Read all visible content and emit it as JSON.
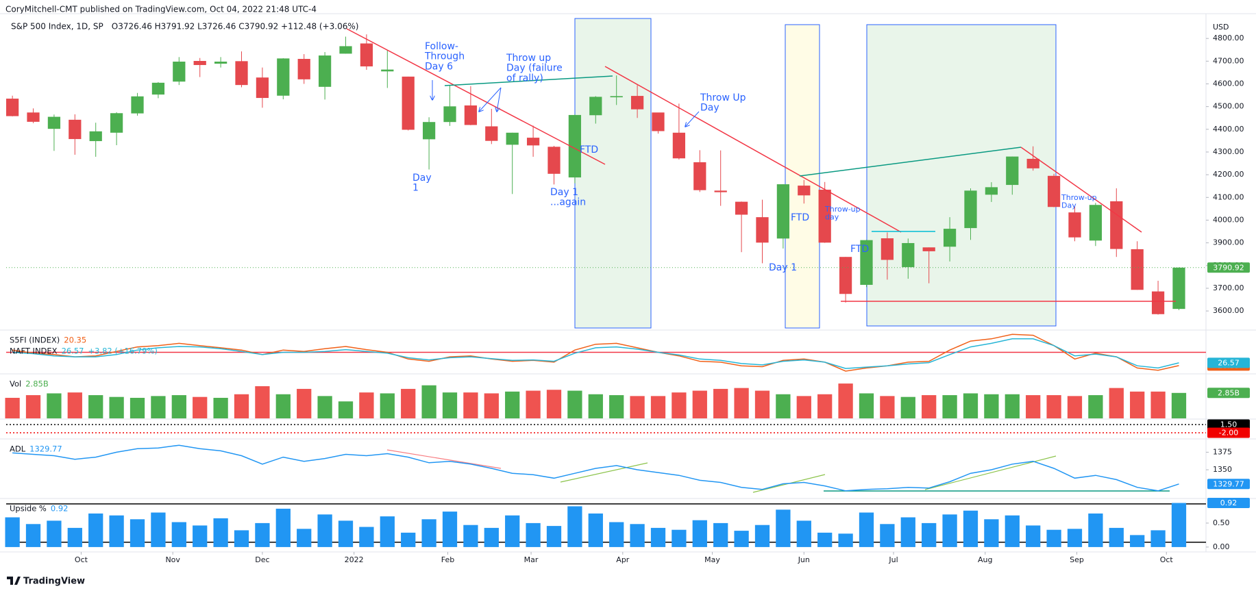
{
  "header": {
    "publisher": "CoryMitchell-CMT published on TradingView.com, Oct 04, 2022 21:48 UTC-4",
    "symbol": "S&P 500 Index, 1D, SP",
    "ohlc": "O3726.46  H3791.92  L3726.46  C3790.92  +112.48 (+3.06%)"
  },
  "footer": {
    "logo": "TradingView"
  },
  "chart_data": [
    {
      "type": "candlestick",
      "unit": "USD",
      "colors": {
        "up": "#4caf50",
        "down": "#e5484d"
      },
      "open": [
        4535,
        4474,
        4402,
        4442,
        4348,
        4385,
        4470,
        4553,
        4610,
        4701,
        4689,
        4700,
        4628,
        4548,
        4710,
        4587,
        4733,
        4778,
        4655,
        4632,
        4356,
        4432,
        4505,
        4413,
        4332,
        4363,
        4323,
        4188,
        4462,
        4541,
        4547,
        4474,
        4385,
        4255,
        4130,
        4081,
        4013,
        3919,
        4152,
        4134,
        3838,
        3715,
        3920,
        3793,
        3880,
        3883,
        3965,
        4112,
        4155,
        4270,
        4195,
        4034,
        3910,
        4083,
        3872,
        3686,
        3609
      ],
      "high": [
        4548,
        4492,
        4465,
        4466,
        4429,
        4475,
        4560,
        4608,
        4718,
        4714,
        4718,
        4743,
        4672,
        4713,
        4731,
        4740,
        4808,
        4818,
        4748,
        4632,
        4453,
        4595,
        4590,
        4490,
        4385,
        4416,
        4327,
        4465,
        4546,
        4637,
        4594,
        4471,
        4513,
        4308,
        4307,
        4082,
        4090,
        4158,
        4177,
        4168,
        3838,
        3913,
        3946,
        3919,
        3880,
        4013,
        4140,
        4167,
        4280,
        4325,
        4204,
        4062,
        4076,
        4140,
        3907,
        3733,
        3792
      ],
      "low": [
        4457,
        4427,
        4305,
        4288,
        4279,
        4330,
        4460,
        4537,
        4595,
        4630,
        4672,
        4585,
        4495,
        4532,
        4600,
        4531,
        4733,
        4662,
        4582,
        4395,
        4223,
        4415,
        4418,
        4335,
        4115,
        4279,
        4157,
        4162,
        4425,
        4507,
        4450,
        4381,
        4267,
        4124,
        4063,
        3859,
        3810,
        3875,
        4073,
        3900,
        3637,
        3705,
        3738,
        3742,
        3722,
        3818,
        3913,
        4080,
        4112,
        4218,
        4057,
        3907,
        3886,
        3838,
        3693,
        3584,
        3604
      ],
      "close": [
        4458,
        4433,
        4455,
        4357,
        4391,
        4471,
        4545,
        4605,
        4698,
        4683,
        4698,
        4595,
        4538,
        4712,
        4620,
        4725,
        4766,
        4677,
        4663,
        4398,
        4432,
        4501,
        4419,
        4349,
        4385,
        4329,
        4204,
        4463,
        4543,
        4546,
        4488,
        4392,
        4272,
        4132,
        4123,
        4024,
        3901,
        4158,
        4109,
        3901,
        3675,
        3912,
        3825,
        3899,
        3863,
        3962,
        4130,
        4145,
        4280,
        4228,
        4058,
        3924,
        4067,
        3873,
        3693,
        3586,
        3790.92
      ],
      "xlim": [
        -0.3,
        57.3
      ],
      "xticks": [
        {
          "value": 3.3,
          "label": "Oct"
        },
        {
          "value": 7.7,
          "label": "Nov"
        },
        {
          "value": 12.0,
          "label": "Dec"
        },
        {
          "value": 16.4,
          "label": "2022"
        },
        {
          "value": 20.9,
          "label": "Feb"
        },
        {
          "value": 24.9,
          "label": "Mar"
        },
        {
          "value": 29.3,
          "label": "Apr"
        },
        {
          "value": 33.6,
          "label": "May"
        },
        {
          "value": 38.0,
          "label": "Jun"
        },
        {
          "value": 42.3,
          "label": "Jul"
        },
        {
          "value": 46.7,
          "label": "Aug"
        },
        {
          "value": 51.1,
          "label": "Sep"
        },
        {
          "value": 55.4,
          "label": "Oct"
        }
      ],
      "ylim": [
        3525,
        4900
      ],
      "yticks": [
        {
          "value": 3600,
          "label": "3600.00"
        },
        {
          "value": 3700,
          "label": "3700.00"
        },
        {
          "value": 3800,
          "label": "3800.00"
        },
        {
          "value": 3900,
          "label": "3900.00"
        },
        {
          "value": 4000,
          "label": "4000.00"
        },
        {
          "value": 4100,
          "label": "4100.00"
        },
        {
          "value": 4200,
          "label": "4200.00"
        },
        {
          "value": 4300,
          "label": "4300.00"
        },
        {
          "value": 4400,
          "label": "4400.00"
        },
        {
          "value": 4500,
          "label": "4500.00"
        },
        {
          "value": 4600,
          "label": "4600.00"
        },
        {
          "value": 4700,
          "label": "4700.00"
        },
        {
          "value": 4800,
          "label": "4800.00"
        }
      ],
      "grid": false,
      "annotations": [
        {
          "lines": [
            "Follow-",
            "Through",
            "Day 6"
          ]
        },
        {
          "lines": [
            "Throw up",
            "Day (failure",
            "of rally)"
          ]
        },
        {
          "lines": [
            "Throw Up",
            "Day"
          ]
        },
        {
          "lines": [
            "FTD"
          ]
        },
        {
          "lines": [
            "Day",
            "1"
          ]
        },
        {
          "lines": [
            "Day 1",
            "...again"
          ]
        },
        {
          "lines": [
            "FTD"
          ]
        },
        {
          "lines": [
            "Throw-up",
            "day"
          ]
        },
        {
          "lines": [
            "Day 1"
          ]
        },
        {
          "lines": [
            "FTD"
          ]
        },
        {
          "lines": [
            "Throw-up",
            "Day"
          ]
        }
      ]
    },
    {
      "type": "line",
      "ylim": [
        5,
        95
      ],
      "level": 50,
      "level_color": "#f23645",
      "series": [
        {
          "name": "S5FI (INDEX)",
          "color": "#f06018",
          "values": [
            55,
            48,
            45,
            40,
            42,
            52,
            62,
            65,
            70,
            65,
            60,
            55,
            45,
            55,
            52,
            58,
            63,
            56,
            50,
            35,
            30,
            40,
            42,
            35,
            30,
            32,
            28,
            55,
            68,
            70,
            60,
            50,
            42,
            30,
            28,
            20,
            18,
            32,
            35,
            28,
            8,
            15,
            20,
            28,
            30,
            55,
            75,
            80,
            90,
            88,
            65,
            35,
            48,
            40,
            15,
            10,
            20.35
          ]
        },
        {
          "name": "NAFT INDEX",
          "change": "+3.82 (+16.79%)",
          "color": "#26b5d6",
          "values": [
            50,
            47,
            42,
            40,
            40,
            45,
            55,
            60,
            63,
            62,
            58,
            52,
            45,
            50,
            50,
            52,
            56,
            52,
            48,
            38,
            33,
            38,
            40,
            36,
            32,
            33,
            30,
            48,
            60,
            62,
            57,
            50,
            44,
            35,
            32,
            25,
            22,
            30,
            33,
            28,
            14,
            17,
            20,
            24,
            27,
            45,
            62,
            70,
            80,
            80,
            65,
            42,
            46,
            40,
            20,
            15,
            26.57
          ]
        }
      ]
    },
    {
      "type": "bar",
      "title": "Vol",
      "color_by": "candles",
      "colors": {
        "up": "#4caf50",
        "down": "#ef5350"
      },
      "ylim": [
        0,
        4.75
      ],
      "last_value_label": "2.85B",
      "values": [
        2.3,
        2.6,
        2.8,
        2.9,
        2.6,
        2.4,
        2.3,
        2.5,
        2.6,
        2.4,
        2.3,
        2.7,
        3.6,
        2.7,
        3.3,
        2.5,
        1.9,
        2.9,
        2.8,
        3.3,
        3.7,
        2.9,
        2.9,
        2.8,
        3.0,
        3.1,
        3.2,
        3.1,
        2.7,
        2.6,
        2.5,
        2.5,
        2.9,
        3.1,
        3.3,
        3.4,
        3.1,
        2.7,
        2.5,
        2.7,
        3.9,
        2.8,
        2.5,
        2.4,
        2.6,
        2.6,
        2.8,
        2.7,
        2.7,
        2.6,
        2.6,
        2.5,
        2.6,
        3.4,
        3.0,
        3.0,
        2.85
      ]
    },
    {
      "type": "levels",
      "ylim": [
        -4.3,
        3.8
      ],
      "levels": [
        {
          "value": 1.5,
          "label": "1.50",
          "color": "#000000"
        },
        {
          "value": -2,
          "label": "-2.00",
          "color": "#f00000"
        }
      ]
    },
    {
      "type": "line",
      "ylim": [
        1312,
        1391
      ],
      "yticks": [
        1375,
        1350
      ],
      "series": [
        {
          "name": "ADL",
          "color": "#2196f3",
          "values": [
            1374,
            1372,
            1370,
            1365,
            1368,
            1375,
            1380,
            1381,
            1385,
            1380,
            1377,
            1370,
            1358,
            1368,
            1362,
            1366,
            1372,
            1370,
            1373,
            1368,
            1360,
            1362,
            1358,
            1352,
            1345,
            1343,
            1338,
            1345,
            1352,
            1356,
            1350,
            1346,
            1342,
            1335,
            1332,
            1325,
            1322,
            1330,
            1332,
            1327,
            1320,
            1322,
            1323,
            1325,
            1324,
            1333,
            1345,
            1350,
            1358,
            1362,
            1352,
            1338,
            1342,
            1336,
            1325,
            1320,
            1329.77
          ]
        }
      ]
    },
    {
      "type": "bar",
      "title": "Upside %",
      "color": "#2196f3",
      "ylim": [
        -0.03,
        0.97
      ],
      "yticks": [
        {
          "value": 0.5,
          "label": "0.50"
        },
        {
          "value": 0,
          "label": "0.00"
        }
      ],
      "levels": [
        0.9,
        0.1
      ],
      "values": [
        0.62,
        0.48,
        0.55,
        0.4,
        0.7,
        0.66,
        0.58,
        0.72,
        0.52,
        0.45,
        0.6,
        0.35,
        0.5,
        0.8,
        0.38,
        0.68,
        0.55,
        0.42,
        0.64,
        0.3,
        0.58,
        0.74,
        0.46,
        0.4,
        0.66,
        0.5,
        0.44,
        0.85,
        0.7,
        0.52,
        0.48,
        0.4,
        0.36,
        0.56,
        0.5,
        0.34,
        0.46,
        0.78,
        0.55,
        0.3,
        0.28,
        0.72,
        0.48,
        0.62,
        0.5,
        0.68,
        0.76,
        0.58,
        0.66,
        0.45,
        0.36,
        0.38,
        0.7,
        0.4,
        0.25,
        0.35,
        0.92
      ]
    }
  ]
}
